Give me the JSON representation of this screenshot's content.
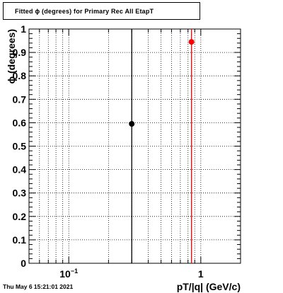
{
  "window": {
    "title": "Fitted ϕ (degrees) for Primary Rec All EtapT",
    "timestamp": "Thu May  6 15:21:01 2021"
  },
  "chart_data": {
    "type": "scatter",
    "title": "Fitted ϕ (degrees) for Primary Rec All EtapT",
    "xlabel": "pT/|q| (GeV/c)",
    "ylabel": "ϕ (degrees)",
    "xscale": "log",
    "xlim": [
      0.05,
      2.0
    ],
    "ylim": [
      0,
      1
    ],
    "grid": true,
    "x_tick_labels": [
      {
        "value": 0.1,
        "base": "10",
        "exp": "−1"
      },
      {
        "value": 1,
        "base": "1",
        "exp": ""
      }
    ],
    "y_tick_labels": [
      "0",
      "0.1",
      "0.2",
      "0.3",
      "0.4",
      "0.5",
      "0.6",
      "0.7",
      "0.8",
      "0.9",
      "1"
    ],
    "series": [
      {
        "color": "#000000",
        "points": [
          {
            "x": 0.3,
            "y": 0.595
          }
        ]
      },
      {
        "color": "#ff0000",
        "points": [
          {
            "x": 0.85,
            "y": 0.945
          }
        ]
      }
    ]
  }
}
